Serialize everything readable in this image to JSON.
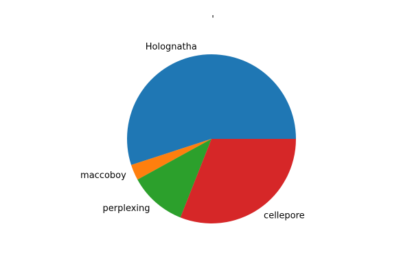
{
  "chart_data": {
    "type": "pie",
    "title": "'",
    "labels": [
      "Holognatha",
      "maccoboy",
      "perplexing",
      "cellepore"
    ],
    "values": [
      55,
      3,
      11,
      31
    ],
    "colors": [
      "#1f77b4",
      "#ff7f0e",
      "#2ca02c",
      "#d62728"
    ],
    "start_angle": 0,
    "direction": "counterclockwise"
  }
}
